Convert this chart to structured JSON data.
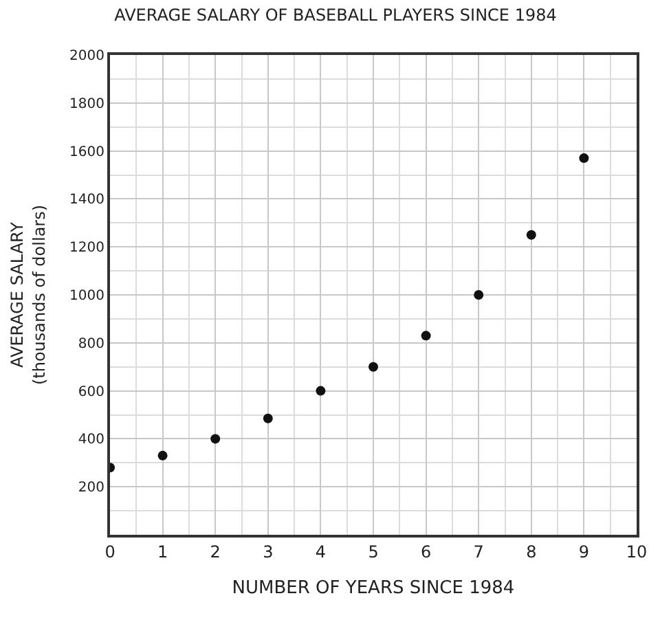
{
  "chart_data": {
    "type": "scatter",
    "title": "AVERAGE SALARY OF BASEBALL PLAYERS SINCE 1984",
    "xlabel": "NUMBER OF YEARS SINCE 1984",
    "ylabel": "AVERAGE SALARY\n(thousands of dollars)",
    "x": [
      0,
      1,
      2,
      3,
      4,
      5,
      6,
      7,
      8,
      9
    ],
    "series": [
      {
        "color": "#111111",
        "values": [
          280,
          330,
          400,
          485,
          600,
          700,
          830,
          1000,
          1250,
          1570
        ]
      }
    ],
    "xlim": [
      0,
      10
    ],
    "xticks": [
      0,
      1,
      2,
      3,
      4,
      5,
      6,
      7,
      8,
      9,
      10
    ],
    "ylim": [
      0,
      2000
    ],
    "yticks": [
      200,
      400,
      600,
      800,
      1000,
      1200,
      1400,
      1600,
      1800,
      2000
    ],
    "grid": true,
    "marker": "circle"
  }
}
